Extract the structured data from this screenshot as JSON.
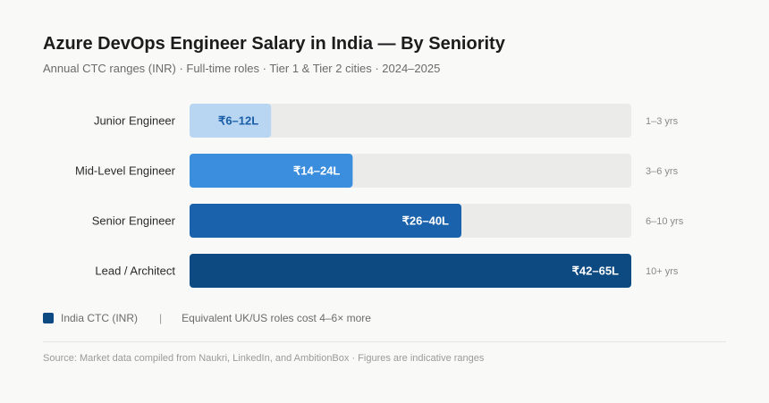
{
  "header": {
    "title": "Azure DevOps Engineer Salary in India — By Seniority",
    "subtitle": "Annual CTC ranges (INR) · Full-time roles · Tier 1 & Tier 2 cities · 2024–2025"
  },
  "chart_data": {
    "type": "bar",
    "orientation": "horizontal",
    "categories": [
      "Junior Engineer",
      "Mid-Level Engineer",
      "Senior Engineer",
      "Lead / Architect"
    ],
    "ranges_lakh": [
      [
        6,
        12
      ],
      [
        14,
        24
      ],
      [
        26,
        40
      ],
      [
        42,
        65
      ]
    ],
    "values": [
      12,
      24,
      40,
      65
    ],
    "value_labels": [
      "₹6–12L",
      "₹14–24L",
      "₹26–40L",
      "₹42–65L"
    ],
    "experience_labels": [
      "1–3 yrs",
      "3–6 yrs",
      "6–10 yrs",
      "10+ yrs"
    ],
    "xlim": [
      0,
      65
    ],
    "grid": false,
    "colors": {
      "bars": [
        "#b8d6f2",
        "#3b8ede",
        "#1a62ab",
        "#0d4a82"
      ],
      "label_text": [
        "#1a5ea8",
        "#ffffff",
        "#ffffff",
        "#ffffff"
      ],
      "track": "#ebebea"
    }
  },
  "legend": {
    "label": "India CTC (INR)",
    "swatch_color": "#0d4a82",
    "separator": "|",
    "note": "Equivalent UK/US roles cost 4–6× more"
  },
  "footer": {
    "source": "Source: Market data compiled from Naukri, LinkedIn, and AmbitionBox · Figures are indicative ranges"
  }
}
